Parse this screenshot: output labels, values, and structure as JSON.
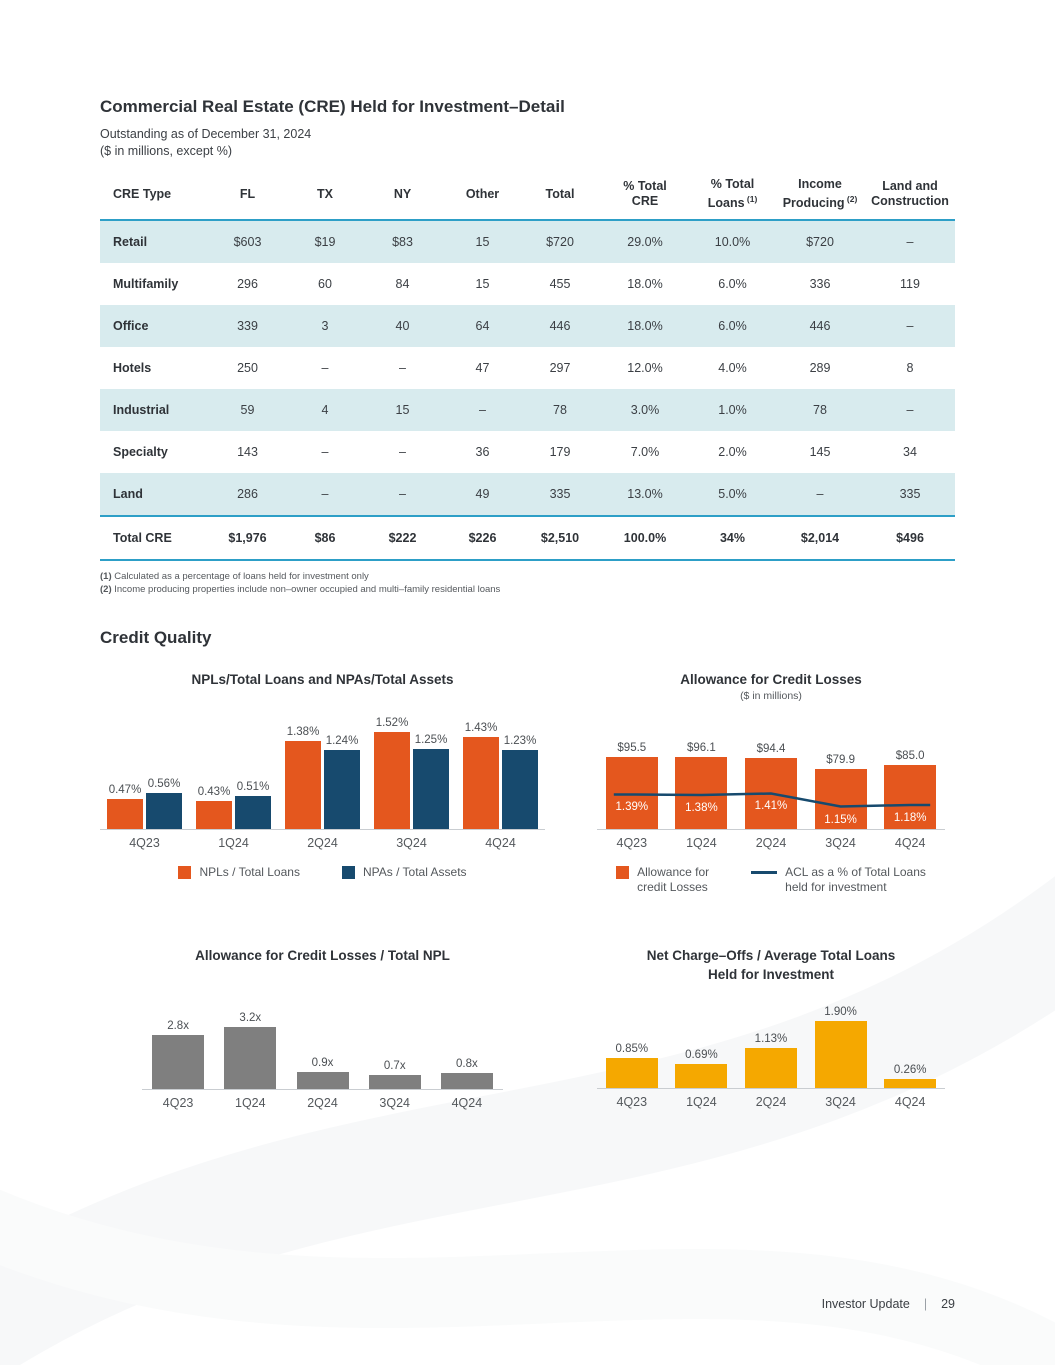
{
  "table_section": {
    "title": "Commercial Real Estate (CRE) Held for Investment–Detail",
    "subtitle_line1": "Outstanding as of December 31, 2024",
    "subtitle_line2": "($ in millions, except %)",
    "columns": [
      {
        "label": "CRE Type"
      },
      {
        "label": "FL"
      },
      {
        "label": "TX"
      },
      {
        "label": "NY"
      },
      {
        "label": "Other"
      },
      {
        "label": "Total"
      },
      {
        "label": "% Total\nCRE"
      },
      {
        "label": "% Total\nLoans",
        "sup": "(1)"
      },
      {
        "label": "Income\nProducing",
        "sup": "(2)"
      },
      {
        "label": "Land and\nConstruction"
      }
    ],
    "rows": [
      [
        "Retail",
        "$603",
        "$19",
        "$83",
        "15",
        "$720",
        "29.0%",
        "10.0%",
        "$720",
        "–"
      ],
      [
        "Multifamily",
        "296",
        "60",
        "84",
        "15",
        "455",
        "18.0%",
        "6.0%",
        "336",
        "119"
      ],
      [
        "Office",
        "339",
        "3",
        "40",
        "64",
        "446",
        "18.0%",
        "6.0%",
        "446",
        "–"
      ],
      [
        "Hotels",
        "250",
        "–",
        "–",
        "47",
        "297",
        "12.0%",
        "4.0%",
        "289",
        "8"
      ],
      [
        "Industrial",
        "59",
        "4",
        "15",
        "–",
        "78",
        "3.0%",
        "1.0%",
        "78",
        "–"
      ],
      [
        "Specialty",
        "143",
        "–",
        "–",
        "36",
        "179",
        "7.0%",
        "2.0%",
        "145",
        "34"
      ],
      [
        "Land",
        "286",
        "–",
        "–",
        "49",
        "335",
        "13.0%",
        "5.0%",
        "–",
        "335"
      ]
    ],
    "total_row": [
      "Total CRE",
      "$1,976",
      "$86",
      "$222",
      "$226",
      "$2,510",
      "100.0%",
      "34%",
      "$2,014",
      "$496"
    ],
    "footnotes": [
      {
        "mark": "(1)",
        "text": "Calculated as a percentage of loans held for investment only"
      },
      {
        "mark": "(2)",
        "text": "Income producing properties include non–owner occupied and multi–family residential loans"
      }
    ]
  },
  "credit_quality": {
    "title": "Credit Quality"
  },
  "chart_data": [
    {
      "type": "bar",
      "title": "NPLs/Total Loans and NPAs/Total Assets",
      "categories": [
        "4Q23",
        "1Q24",
        "2Q24",
        "3Q24",
        "4Q24"
      ],
      "series": [
        {
          "name": "NPLs / Total Loans",
          "color": "#E4571E",
          "values": [
            0.47,
            0.43,
            1.38,
            1.52,
            1.43
          ],
          "labels": [
            "0.47%",
            "0.43%",
            "1.38%",
            "1.52%",
            "1.43%"
          ]
        },
        {
          "name": "NPAs / Total Assets",
          "color": "#174A6E",
          "values": [
            0.56,
            0.51,
            1.24,
            1.25,
            1.23
          ],
          "labels": [
            "0.56%",
            "0.51%",
            "1.24%",
            "1.25%",
            "1.23%"
          ]
        }
      ],
      "ylim": [
        0,
        1.7
      ],
      "grid": false,
      "legend_position": "bottom"
    },
    {
      "type": "bar+line",
      "title": "Allowance for Credit Losses",
      "subtitle": "($ in millions)",
      "categories": [
        "4Q23",
        "1Q24",
        "2Q24",
        "3Q24",
        "4Q24"
      ],
      "series": [
        {
          "kind": "bar",
          "name": "Allowance for\ncredit Losses",
          "color": "#E4571E",
          "values": [
            95.5,
            96.1,
            94.4,
            79.9,
            85.0
          ],
          "labels": [
            "$95.5",
            "$96.1",
            "$94.4",
            "$79.9",
            "$85.0"
          ]
        },
        {
          "kind": "line",
          "name": "ACL as a % of Total Loans\nheld for investment",
          "color": "#174A6E",
          "values": [
            1.39,
            1.38,
            1.41,
            1.15,
            1.18
          ],
          "labels": [
            "1.39%",
            "1.38%",
            "1.41%",
            "1.15%",
            "1.18%"
          ]
        }
      ],
      "ylim": [
        0,
        110
      ],
      "grid": false,
      "legend_position": "bottom"
    },
    {
      "type": "bar",
      "title": "Allowance for Credit Losses / Total NPL",
      "categories": [
        "4Q23",
        "1Q24",
        "2Q24",
        "3Q24",
        "4Q24"
      ],
      "series": [
        {
          "name": "Allowance for Credit Losses / Total NPL",
          "color": "#7F7F7F",
          "values": [
            2.8,
            3.2,
            0.9,
            0.7,
            0.8
          ],
          "labels": [
            "2.8x",
            "3.2x",
            "0.9x",
            "0.7x",
            "0.8x"
          ]
        }
      ],
      "ylim": [
        0,
        3.6
      ],
      "grid": false,
      "legend_position": "none"
    },
    {
      "type": "bar",
      "title": "Net Charge–Offs / Average Total Loans\nHeld for Investment",
      "categories": [
        "4Q23",
        "1Q24",
        "2Q24",
        "3Q24",
        "4Q24"
      ],
      "series": [
        {
          "name": "Net Charge–Offs / Average Total Loans Held for Investment",
          "color": "#F5A800",
          "values": [
            0.85,
            0.69,
            1.13,
            1.9,
            0.26
          ],
          "labels": [
            "0.85%",
            "0.69%",
            "1.13%",
            "1.90%",
            "0.26%"
          ]
        }
      ],
      "ylim": [
        0,
        2.1
      ],
      "grid": false,
      "legend_position": "none"
    }
  ],
  "footer": {
    "label": "Investor Update",
    "separator": "|",
    "page_number": "29"
  },
  "colors": {
    "accent_orange": "#E4571E",
    "navy": "#174A6E",
    "gray_bar": "#7F7F7F",
    "amber": "#F5A800",
    "table_stripe": "#D8EBEE",
    "rule_blue": "#2D9FC7",
    "axis_line": "#C9CDD1"
  }
}
